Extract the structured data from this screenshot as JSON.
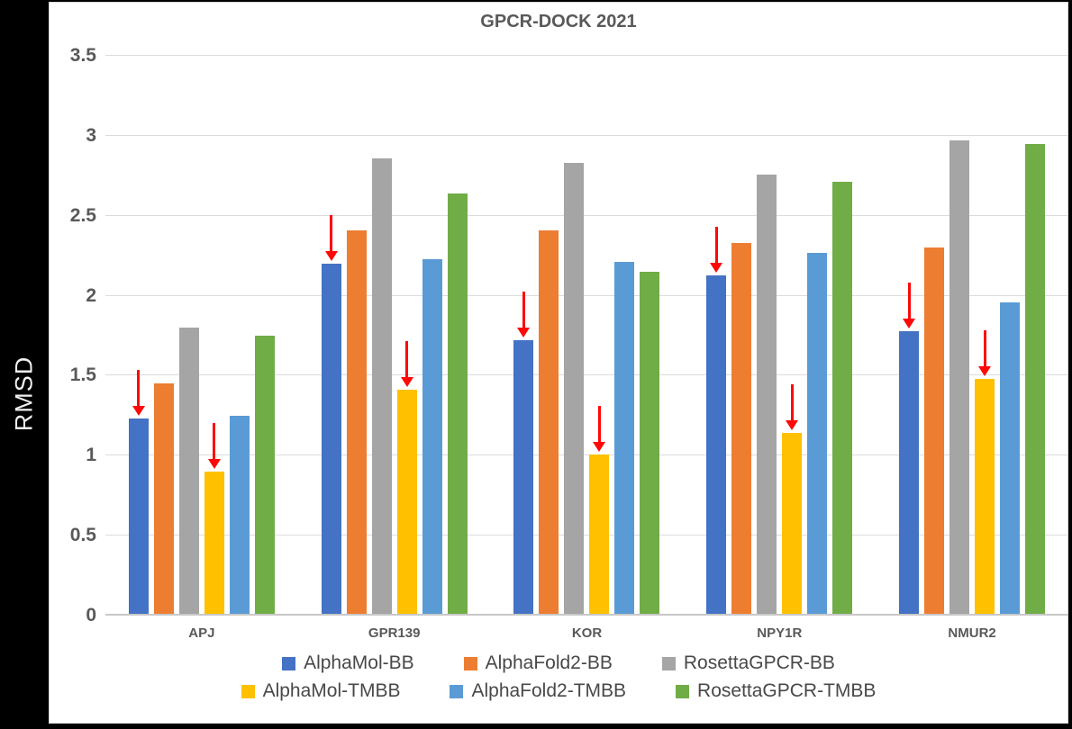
{
  "chart_data": {
    "type": "bar",
    "title": "GPCR-DOCK 2021",
    "ylabel": "RMSD",
    "xlabel": "",
    "ylim": [
      0,
      3.5
    ],
    "grid": true,
    "legend_position": "bottom",
    "yticks": [
      {
        "value": 3.5,
        "label": "3.5"
      },
      {
        "value": 3.0,
        "label": "3"
      },
      {
        "value": 2.5,
        "label": "2.5"
      },
      {
        "value": 2.0,
        "label": "2"
      },
      {
        "value": 1.5,
        "label": "1.5"
      },
      {
        "value": 1.0,
        "label": "1"
      },
      {
        "value": 0.5,
        "label": "0.5"
      },
      {
        "value": 0.0,
        "label": "0"
      }
    ],
    "categories": [
      "APJ",
      "GPR139",
      "KOR",
      "NPY1R",
      "NMUR2"
    ],
    "series": [
      {
        "name": "AlphaMol-BB",
        "color": "#4472C4",
        "arrow": true,
        "values": [
          1.23,
          2.2,
          1.72,
          2.13,
          1.78
        ]
      },
      {
        "name": "AlphaFold2-BB",
        "color": "#ED7D31",
        "arrow": false,
        "values": [
          1.45,
          2.41,
          2.41,
          2.33,
          2.3
        ]
      },
      {
        "name": "RosettaGPCR-BB",
        "color": "#A5A5A5",
        "arrow": false,
        "values": [
          1.8,
          2.86,
          2.83,
          2.76,
          2.97
        ]
      },
      {
        "name": "AlphaMol-TMBB",
        "color": "#FFC000",
        "arrow": true,
        "values": [
          0.9,
          1.41,
          1.01,
          1.14,
          1.48
        ]
      },
      {
        "name": "AlphaFold2-TMBB",
        "color": "#5B9BD5",
        "arrow": false,
        "values": [
          1.25,
          2.23,
          2.21,
          2.27,
          1.96
        ]
      },
      {
        "name": "RosettaGPCR-TMBB",
        "color": "#70AD47",
        "arrow": false,
        "values": [
          1.75,
          2.64,
          2.15,
          2.71,
          2.95
        ]
      }
    ],
    "annotations": {
      "arrow_color": "#FE0808",
      "arrow_on_series": [
        "AlphaMol-BB",
        "AlphaMol-TMBB"
      ],
      "arrow_direction": "down"
    },
    "style": {
      "text_color": "#595959",
      "grid_color": "#DCDCDC",
      "axis_line_color": "#C8C8C8",
      "panel_background": "#FFFFFF",
      "frame_background": "#000000"
    }
  }
}
